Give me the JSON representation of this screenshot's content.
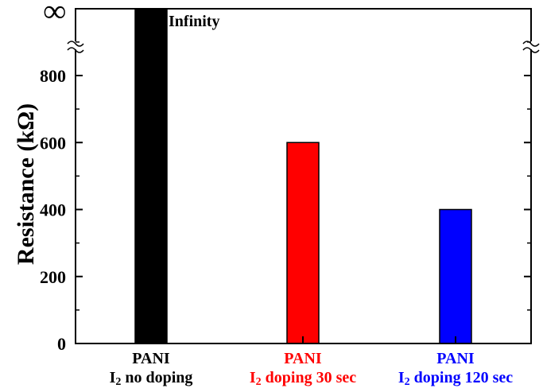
{
  "chart_data": {
    "type": "bar",
    "title": "",
    "xlabel": "",
    "ylabel": "Resistance (kΩ)",
    "ylim": [
      0,
      1000
    ],
    "yticks": [
      0,
      200,
      400,
      600,
      800
    ],
    "axis_break": true,
    "infinity_symbol": "∞",
    "grid": false,
    "legend": "none",
    "categories": [
      {
        "line1": "PANI",
        "line2_prefix": "I",
        "line2_sub": "2",
        "line2_rest": " no doping",
        "color": "#000000"
      },
      {
        "line1": "PANI",
        "line2_prefix": "I",
        "line2_sub": "2",
        "line2_rest": " doping 30 sec",
        "color": "#ff0000"
      },
      {
        "line1": "PANI",
        "line2_prefix": "I",
        "line2_sub": "2",
        "line2_rest": " doping 120 sec",
        "color": "#0000ff"
      }
    ],
    "values": [
      "Infinity",
      600,
      400
    ],
    "bar_colors": [
      "#000000",
      "#ff0000",
      "#0000ff"
    ],
    "annotations": [
      {
        "text": "Infinity",
        "bar": 0
      }
    ]
  }
}
